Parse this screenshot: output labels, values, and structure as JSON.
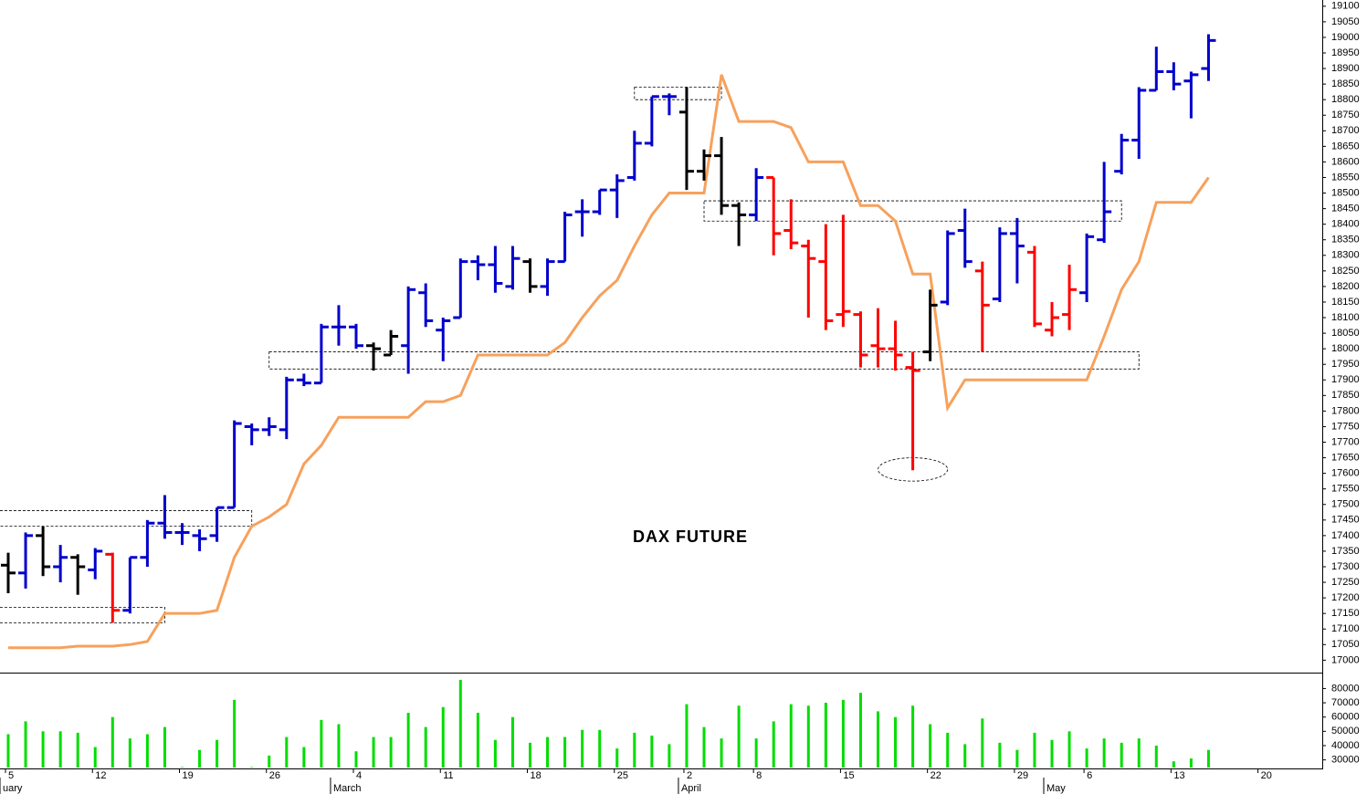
{
  "chart_data": {
    "type": "ohlc",
    "title": "DAX FUTURE",
    "categories": [
      "5",
      null,
      null,
      null,
      null,
      "12",
      null,
      null,
      null,
      null,
      "19",
      null,
      null,
      null,
      null,
      "26",
      null,
      null,
      null,
      null,
      "4",
      null,
      null,
      null,
      null,
      "11",
      null,
      null,
      null,
      null,
      "18",
      null,
      null,
      null,
      null,
      "25",
      null,
      null,
      null,
      "2",
      null,
      null,
      null,
      "8",
      null,
      null,
      null,
      null,
      "15",
      null,
      null,
      null,
      null,
      "22",
      null,
      null,
      null,
      null,
      "29",
      null,
      null,
      null,
      "6",
      null,
      null,
      null,
      null,
      "13",
      null,
      null,
      null,
      null,
      "20",
      null,
      null
    ],
    "months": [
      "uary",
      null,
      null,
      null,
      null,
      null,
      null,
      null,
      null,
      null,
      null,
      null,
      null,
      null,
      null,
      null,
      null,
      null,
      null,
      "March",
      null,
      null,
      null,
      null,
      null,
      null,
      null,
      null,
      null,
      null,
      null,
      null,
      null,
      null,
      null,
      null,
      null,
      null,
      null,
      "April",
      null,
      null,
      null,
      null,
      null,
      null,
      null,
      null,
      null,
      null,
      null,
      null,
      null,
      null,
      null,
      null,
      null,
      null,
      null,
      null,
      "May",
      null,
      null,
      null,
      null,
      null,
      null,
      null,
      null,
      null,
      null,
      null,
      null,
      null,
      null
    ],
    "palette": {
      "up": "#0000cc",
      "neutral": "#000000",
      "down": "#ff0000"
    },
    "signal": [
      "neutral",
      "up",
      "neutral",
      "up",
      "neutral",
      "up",
      "down",
      "up",
      "up",
      "up",
      "up",
      "up",
      "up",
      "up",
      "up",
      "up",
      "up",
      "up",
      "up",
      "up",
      "up",
      "neutral",
      "neutral",
      "up",
      "up",
      "up",
      "up",
      "up",
      "up",
      "up",
      "neutral",
      "up",
      "up",
      "up",
      "up",
      "up",
      "up",
      "up",
      "up",
      "neutral",
      "neutral",
      "neutral",
      "neutral",
      "up",
      "down",
      "down",
      "down",
      "down",
      "down",
      "down",
      "down",
      "down",
      "down",
      "neutral",
      "up",
      "up",
      "down",
      "up",
      "up",
      "down",
      "down",
      "down",
      "up",
      "up",
      "up",
      "up",
      "up",
      "up",
      "up",
      "up",
      null,
      null,
      null,
      null,
      null
    ],
    "open": [
      17305,
      17280,
      17400,
      17300,
      17330,
      17290,
      17340,
      17160,
      17330,
      17440,
      17410,
      17400,
      17400,
      17490,
      17750,
      17740,
      17740,
      17900,
      17890,
      18070,
      18070,
      18010,
      17980,
      18010,
      18180,
      18060,
      18100,
      18280,
      18270,
      18200,
      18280,
      18200,
      18280,
      18440,
      18440,
      18510,
      18550,
      18660,
      18810,
      18760,
      18570,
      18620,
      18460,
      18430,
      18550,
      18380,
      18330,
      18280,
      18110,
      18110,
      18010,
      18000,
      17940,
      17990,
      18150,
      18380,
      18250,
      18160,
      18370,
      18310,
      18060,
      18110,
      18180,
      18350,
      18570,
      18670,
      18830,
      18890,
      18860,
      18900,
      null,
      null,
      null,
      null,
      null
    ],
    "high": [
      17345,
      17410,
      17430,
      17370,
      17340,
      17360,
      17345,
      17330,
      17450,
      17530,
      17440,
      17420,
      17490,
      17770,
      17760,
      17780,
      17910,
      17920,
      18080,
      18140,
      18080,
      18020,
      18060,
      18200,
      18210,
      18100,
      18290,
      18300,
      18330,
      18330,
      18290,
      18290,
      18440,
      18480,
      18510,
      18560,
      18700,
      18810,
      18820,
      18840,
      18640,
      18680,
      18470,
      18580,
      18550,
      18480,
      18350,
      18400,
      18430,
      18120,
      18130,
      18090,
      17990,
      18190,
      18380,
      18450,
      18280,
      18390,
      18420,
      18330,
      18150,
      18270,
      18370,
      18600,
      18690,
      18840,
      18970,
      18920,
      18890,
      19010,
      null,
      null,
      null,
      null,
      null
    ],
    "low": [
      17215,
      17230,
      17270,
      17250,
      17210,
      17260,
      17120,
      17150,
      17300,
      17390,
      17370,
      17350,
      17380,
      17490,
      17690,
      17720,
      17710,
      17880,
      17890,
      18010,
      18000,
      17930,
      17980,
      17920,
      18070,
      17960,
      18100,
      18220,
      18180,
      18190,
      18180,
      18170,
      18280,
      18360,
      18430,
      18420,
      18540,
      18650,
      18750,
      18510,
      18540,
      18430,
      18330,
      18410,
      18300,
      18320,
      18100,
      18060,
      18070,
      17940,
      17940,
      17930,
      17610,
      17960,
      18140,
      18260,
      17990,
      18150,
      18210,
      18070,
      18040,
      18060,
      18150,
      18340,
      18560,
      18610,
      18830,
      18830,
      18740,
      18860,
      null,
      null,
      null,
      null,
      null
    ],
    "close": [
      17280,
      17400,
      17300,
      17330,
      17300,
      17350,
      17160,
      17330,
      17440,
      17410,
      17410,
      17390,
      17490,
      17760,
      17740,
      17750,
      17900,
      17890,
      18070,
      18070,
      18010,
      18000,
      18040,
      18190,
      18090,
      18090,
      18280,
      18270,
      18210,
      18290,
      18200,
      18280,
      18430,
      18440,
      18510,
      18540,
      18660,
      18810,
      18810,
      18570,
      18620,
      18460,
      18430,
      18550,
      18370,
      18340,
      18290,
      18090,
      18120,
      17980,
      18000,
      17980,
      17930,
      18140,
      18370,
      18280,
      18140,
      18370,
      18330,
      18080,
      18100,
      18190,
      18360,
      18440,
      18670,
      18830,
      18890,
      18850,
      18880,
      18990,
      null,
      null,
      null,
      null,
      null
    ],
    "stop": {
      "color": "#f7a15c",
      "values": [
        17040,
        17040,
        17040,
        17040,
        17045,
        17045,
        17045,
        17050,
        17060,
        17150,
        17150,
        17150,
        17160,
        17330,
        17430,
        17460,
        17500,
        17630,
        17690,
        17780,
        17780,
        17780,
        17780,
        17780,
        17830,
        17830,
        17850,
        17980,
        17980,
        17980,
        17980,
        17980,
        18020,
        18100,
        18170,
        18220,
        18330,
        18430,
        18500,
        18500,
        18500,
        18880,
        18730,
        18730,
        18730,
        18710,
        18600,
        18600,
        18600,
        18460,
        18460,
        18410,
        18240,
        18240,
        17810,
        17900,
        17900,
        17900,
        17900,
        17900,
        17900,
        17900,
        17900,
        18040,
        18190,
        18280,
        18470,
        18470,
        18470,
        18550,
        null,
        null,
        null,
        null,
        null
      ]
    },
    "ylim": [
      16960,
      19120
    ],
    "yticks": [
      17000,
      17050,
      17100,
      17150,
      17200,
      17250,
      17300,
      17350,
      17400,
      17450,
      17500,
      17550,
      17600,
      17650,
      17700,
      17750,
      17800,
      17850,
      17900,
      17950,
      18000,
      18050,
      18100,
      18150,
      18200,
      18250,
      18300,
      18350,
      18400,
      18450,
      18500,
      18550,
      18600,
      18650,
      18700,
      18750,
      18800,
      18850,
      18900,
      18950,
      19000,
      19050,
      19100
    ],
    "zones": [
      {
        "x": [
          -1,
          14
        ],
        "y": [
          17430,
          17480
        ]
      },
      {
        "x": [
          -1,
          9
        ],
        "y": [
          17120,
          17170
        ]
      },
      {
        "x": [
          15,
          65
        ],
        "y": [
          17935,
          17990
        ]
      },
      {
        "x": [
          36,
          41
        ],
        "y": [
          18800,
          18840
        ]
      },
      {
        "x": [
          40,
          64
        ],
        "y": [
          18410,
          18475
        ]
      }
    ],
    "ellipse": {
      "x": [
        50,
        54
      ],
      "y": [
        17575,
        17650
      ]
    },
    "volume": {
      "color": "#00dd00",
      "values": [
        48000,
        57000,
        50000,
        50000,
        49000,
        39000,
        60000,
        45000,
        48000,
        53000,
        25000,
        37000,
        44000,
        72000,
        25000,
        33000,
        46000,
        39000,
        58000,
        55000,
        36000,
        46000,
        46000,
        63000,
        53000,
        67000,
        86000,
        63000,
        44000,
        60000,
        42000,
        46000,
        46000,
        51000,
        51000,
        38000,
        49000,
        47000,
        41000,
        69000,
        53000,
        45000,
        68000,
        45000,
        57000,
        69000,
        68000,
        70000,
        72000,
        77000,
        64000,
        60000,
        68000,
        55000,
        49000,
        41000,
        59000,
        42000,
        37000,
        49000,
        44000,
        50000,
        38000,
        45000,
        42000,
        45000,
        40000,
        29000,
        31000,
        37000,
        null,
        null,
        null,
        null,
        null
      ],
      "ylim": [
        24000,
        90500
      ],
      "yticks": [
        30000,
        40000,
        50000,
        60000,
        70000,
        80000
      ]
    }
  }
}
